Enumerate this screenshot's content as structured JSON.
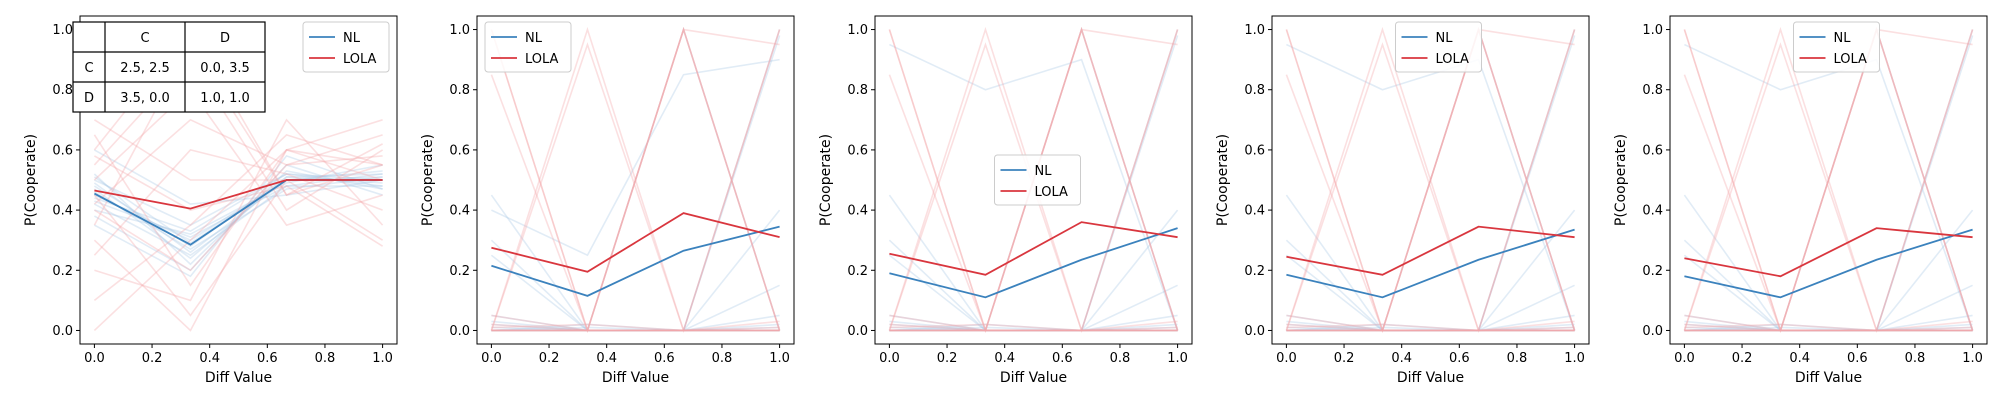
{
  "colors": {
    "nl": "#3b82bd",
    "lola": "#d9363e",
    "nl_faint": "#a9c8e6",
    "lola_faint": "#f3a5a9"
  },
  "legend": {
    "nl": "NL",
    "lola": "LOLA"
  },
  "payoff_table": {
    "col_headers": [
      "C",
      "D"
    ],
    "rows": [
      {
        "label": "C",
        "cells": [
          "2.5, 2.5",
          "0.0, 3.5"
        ]
      },
      {
        "label": "D",
        "cells": [
          "3.5, 0.0",
          "1.0, 1.0"
        ]
      }
    ]
  },
  "chart_data": [
    {
      "type": "line",
      "xlabel": "Diff Value",
      "ylabel": "P(Cooperate)",
      "xlim": [
        -0.05,
        1.05
      ],
      "ylim": [
        -0.045,
        1.045
      ],
      "x_ticks": [
        "0.0",
        "0.2",
        "0.4",
        "0.6",
        "0.8",
        "1.0"
      ],
      "y_ticks": [
        "0.0",
        "0.2",
        "0.4",
        "0.6",
        "0.8",
        "1.0"
      ],
      "legend_position": "upper right",
      "x": [
        0,
        0.3333,
        0.6667,
        1.0
      ],
      "series": [
        {
          "name": "NL",
          "values": [
            0.455,
            0.285,
            0.5,
            0.5
          ]
        },
        {
          "name": "LOLA",
          "values": [
            0.465,
            0.405,
            0.5,
            0.5
          ]
        }
      ]
    },
    {
      "type": "line",
      "xlabel": "Diff Value",
      "ylabel": "P(Cooperate)",
      "xlim": [
        -0.05,
        1.05
      ],
      "ylim": [
        -0.045,
        1.045
      ],
      "x_ticks": [
        "0.0",
        "0.2",
        "0.4",
        "0.6",
        "0.8",
        "1.0"
      ],
      "y_ticks": [
        "0.0",
        "0.2",
        "0.4",
        "0.6",
        "0.8",
        "1.0"
      ],
      "legend_position": "upper left",
      "x": [
        0,
        0.3333,
        0.6667,
        1.0
      ],
      "series": [
        {
          "name": "NL",
          "values": [
            0.215,
            0.115,
            0.265,
            0.345
          ]
        },
        {
          "name": "LOLA",
          "values": [
            0.275,
            0.195,
            0.39,
            0.31
          ]
        }
      ]
    },
    {
      "type": "line",
      "xlabel": "Diff Value",
      "ylabel": "P(Cooperate)",
      "xlim": [
        -0.05,
        1.05
      ],
      "ylim": [
        -0.045,
        1.045
      ],
      "x_ticks": [
        "0.0",
        "0.2",
        "0.4",
        "0.6",
        "0.8",
        "1.0"
      ],
      "y_ticks": [
        "0.0",
        "0.2",
        "0.4",
        "0.6",
        "0.8",
        "1.0"
      ],
      "legend_position": "center",
      "x": [
        0,
        0.3333,
        0.6667,
        1.0
      ],
      "series": [
        {
          "name": "NL",
          "values": [
            0.19,
            0.11,
            0.235,
            0.34
          ]
        },
        {
          "name": "LOLA",
          "values": [
            0.255,
            0.185,
            0.36,
            0.31
          ]
        }
      ]
    },
    {
      "type": "line",
      "xlabel": "Diff Value",
      "ylabel": "P(Cooperate)",
      "xlim": [
        -0.05,
        1.05
      ],
      "ylim": [
        -0.045,
        1.045
      ],
      "x_ticks": [
        "0.0",
        "0.2",
        "0.4",
        "0.6",
        "0.8",
        "1.0"
      ],
      "y_ticks": [
        "0.0",
        "0.2",
        "0.4",
        "0.6",
        "0.8",
        "1.0"
      ],
      "legend_position": "upper center",
      "x": [
        0,
        0.3333,
        0.6667,
        1.0
      ],
      "series": [
        {
          "name": "NL",
          "values": [
            0.185,
            0.11,
            0.235,
            0.335
          ]
        },
        {
          "name": "LOLA",
          "values": [
            0.245,
            0.185,
            0.345,
            0.31
          ]
        }
      ]
    },
    {
      "type": "line",
      "xlabel": "Diff Value",
      "ylabel": "P(Cooperate)",
      "xlim": [
        -0.05,
        1.05
      ],
      "ylim": [
        -0.045,
        1.045
      ],
      "x_ticks": [
        "0.0",
        "0.2",
        "0.4",
        "0.6",
        "0.8",
        "1.0"
      ],
      "y_ticks": [
        "0.0",
        "0.2",
        "0.4",
        "0.6",
        "0.8",
        "1.0"
      ],
      "legend_position": "upper center",
      "x": [
        0,
        0.3333,
        0.6667,
        1.0
      ],
      "series": [
        {
          "name": "NL",
          "values": [
            0.18,
            0.11,
            0.235,
            0.335
          ]
        },
        {
          "name": "LOLA",
          "values": [
            0.24,
            0.18,
            0.34,
            0.31
          ]
        }
      ]
    }
  ],
  "background_runs": [
    {
      "nl": [
        [
          0.45,
          0.3,
          0.5,
          0.5
        ],
        [
          0.5,
          0.35,
          0.52,
          0.48
        ],
        [
          0.42,
          0.25,
          0.48,
          0.52
        ],
        [
          0.48,
          0.28,
          0.51,
          0.49
        ],
        [
          0.4,
          0.32,
          0.49,
          0.55
        ],
        [
          0.52,
          0.22,
          0.53,
          0.47
        ],
        [
          0.46,
          0.27,
          0.47,
          0.51
        ],
        [
          0.44,
          0.33,
          0.52,
          0.5
        ],
        [
          0.38,
          0.2,
          0.55,
          0.45
        ],
        [
          0.49,
          0.26,
          0.5,
          0.53
        ],
        [
          0.43,
          0.31,
          0.48,
          0.48
        ],
        [
          0.47,
          0.24,
          0.51,
          0.52
        ],
        [
          0.6,
          0.42,
          0.45,
          0.5
        ],
        [
          0.35,
          0.18,
          0.58,
          0.47
        ],
        [
          0.51,
          0.29,
          0.5,
          0.51
        ]
      ],
      "lola": [
        [
          0.3,
          0.0,
          0.6,
          0.5
        ],
        [
          0.6,
          1.0,
          0.45,
          0.55
        ],
        [
          0.2,
          0.1,
          0.7,
          0.35
        ],
        [
          0.55,
          0.9,
          0.4,
          0.6
        ],
        [
          0.4,
          0.2,
          0.55,
          0.65
        ],
        [
          0.7,
          0.5,
          0.5,
          0.3
        ],
        [
          0.1,
          0.35,
          0.65,
          0.55
        ],
        [
          0.5,
          0.8,
          0.35,
          0.45
        ],
        [
          0.65,
          0.15,
          0.6,
          0.7
        ],
        [
          0.25,
          0.6,
          0.52,
          0.4
        ],
        [
          0.45,
          0.05,
          0.5,
          0.5
        ],
        [
          0.35,
          0.95,
          0.45,
          0.62
        ],
        [
          0.0,
          0.3,
          0.6,
          0.55
        ],
        [
          0.58,
          0.4,
          0.48,
          0.28
        ],
        [
          0.42,
          0.7,
          0.55,
          0.58
        ]
      ]
    },
    {
      "nl": [
        [
          0.0,
          0.0,
          0.0,
          1.0
        ],
        [
          0.45,
          0.0,
          0.0,
          0.0
        ],
        [
          0.0,
          0.0,
          0.0,
          0.02
        ],
        [
          0.02,
          0.0,
          1.0,
          0.0
        ],
        [
          0.3,
          0.0,
          0.0,
          0.01
        ],
        [
          0.0,
          0.01,
          0.0,
          0.98
        ],
        [
          0.01,
          0.0,
          0.0,
          0.0
        ],
        [
          0.4,
          0.25,
          0.85,
          0.9
        ],
        [
          0.0,
          0.0,
          0.0,
          0.05
        ],
        [
          0.03,
          0.0,
          0.0,
          0.0
        ],
        [
          0.0,
          0.02,
          0.0,
          0.0
        ],
        [
          0.25,
          0.0,
          0.0,
          0.4
        ],
        [
          0.0,
          0.0,
          0.0,
          0.0
        ],
        [
          0.05,
          0.0,
          0.0,
          0.15
        ]
      ],
      "lola": [
        [
          1.0,
          0.0,
          1.0,
          0.0
        ],
        [
          0.0,
          1.0,
          0.0,
          1.0
        ],
        [
          0.0,
          0.0,
          1.0,
          0.0
        ],
        [
          0.0,
          0.0,
          0.0,
          0.0
        ],
        [
          0.02,
          0.0,
          0.0,
          0.01
        ],
        [
          1.0,
          0.0,
          0.0,
          0.0
        ],
        [
          0.0,
          0.0,
          1.0,
          0.95
        ],
        [
          0.0,
          0.0,
          0.0,
          0.03
        ],
        [
          0.01,
          0.02,
          0.0,
          0.0
        ],
        [
          0.0,
          0.95,
          0.0,
          0.0
        ],
        [
          0.85,
          0.0,
          1.0,
          0.0
        ],
        [
          0.0,
          0.0,
          0.0,
          1.0
        ],
        [
          0.0,
          0.0,
          0.0,
          0.0
        ],
        [
          0.05,
          0.0,
          0.0,
          0.0
        ]
      ]
    },
    {
      "nl": [
        [
          0.0,
          0.0,
          0.0,
          1.0
        ],
        [
          0.45,
          0.0,
          0.0,
          0.0
        ],
        [
          0.0,
          0.0,
          0.0,
          0.02
        ],
        [
          0.02,
          0.0,
          1.0,
          0.0
        ],
        [
          0.3,
          0.0,
          0.0,
          0.01
        ],
        [
          0.0,
          0.01,
          0.0,
          0.98
        ],
        [
          0.01,
          0.0,
          0.0,
          0.0
        ],
        [
          0.95,
          0.8,
          0.9,
          0.0
        ],
        [
          0.0,
          0.0,
          0.0,
          0.05
        ],
        [
          0.03,
          0.0,
          0.0,
          0.0
        ],
        [
          0.0,
          0.02,
          0.0,
          0.0
        ],
        [
          0.25,
          0.0,
          0.0,
          0.4
        ],
        [
          0.0,
          0.0,
          0.0,
          0.0
        ],
        [
          0.05,
          0.0,
          0.0,
          0.15
        ]
      ],
      "lola": [
        [
          1.0,
          0.0,
          1.0,
          0.0
        ],
        [
          0.0,
          1.0,
          0.0,
          1.0
        ],
        [
          0.0,
          0.0,
          1.0,
          0.0
        ],
        [
          0.0,
          0.0,
          0.0,
          0.0
        ],
        [
          0.02,
          0.0,
          0.0,
          0.01
        ],
        [
          1.0,
          0.0,
          0.0,
          0.0
        ],
        [
          0.0,
          0.0,
          1.0,
          0.95
        ],
        [
          0.0,
          0.0,
          0.0,
          0.03
        ],
        [
          0.01,
          0.02,
          0.0,
          0.0
        ],
        [
          0.0,
          0.95,
          0.0,
          0.0
        ],
        [
          0.85,
          0.0,
          1.0,
          0.0
        ],
        [
          0.0,
          0.0,
          0.0,
          1.0
        ],
        [
          0.0,
          0.0,
          0.0,
          0.0
        ],
        [
          0.05,
          0.0,
          0.0,
          0.0
        ]
      ]
    },
    {
      "nl": [
        [
          0.0,
          0.0,
          0.0,
          1.0
        ],
        [
          0.45,
          0.0,
          0.0,
          0.0
        ],
        [
          0.0,
          0.0,
          0.0,
          0.02
        ],
        [
          0.02,
          0.0,
          1.0,
          0.0
        ],
        [
          0.3,
          0.0,
          0.0,
          0.01
        ],
        [
          0.0,
          0.01,
          0.0,
          0.98
        ],
        [
          0.01,
          0.0,
          0.0,
          0.0
        ],
        [
          0.95,
          0.8,
          0.9,
          0.0
        ],
        [
          0.0,
          0.0,
          0.0,
          0.05
        ],
        [
          0.03,
          0.0,
          0.0,
          0.0
        ],
        [
          0.0,
          0.02,
          0.0,
          0.0
        ],
        [
          0.25,
          0.0,
          0.0,
          0.4
        ],
        [
          0.0,
          0.0,
          0.0,
          0.0
        ],
        [
          0.05,
          0.0,
          0.0,
          0.15
        ]
      ],
      "lola": [
        [
          1.0,
          0.0,
          1.0,
          0.0
        ],
        [
          0.0,
          1.0,
          0.0,
          1.0
        ],
        [
          0.0,
          0.0,
          1.0,
          0.0
        ],
        [
          0.0,
          0.0,
          0.0,
          0.0
        ],
        [
          0.02,
          0.0,
          0.0,
          0.01
        ],
        [
          1.0,
          0.0,
          0.0,
          0.0
        ],
        [
          0.0,
          0.0,
          1.0,
          0.95
        ],
        [
          0.0,
          0.0,
          0.0,
          0.03
        ],
        [
          0.01,
          0.02,
          0.0,
          0.0
        ],
        [
          0.0,
          0.95,
          0.0,
          0.0
        ],
        [
          0.85,
          0.0,
          1.0,
          0.0
        ],
        [
          0.0,
          0.0,
          0.0,
          1.0
        ],
        [
          0.0,
          0.0,
          0.0,
          0.0
        ],
        [
          0.05,
          0.0,
          0.0,
          0.0
        ]
      ]
    },
    {
      "nl": [
        [
          0.0,
          0.0,
          0.0,
          1.0
        ],
        [
          0.45,
          0.0,
          0.0,
          0.0
        ],
        [
          0.0,
          0.0,
          0.0,
          0.02
        ],
        [
          0.02,
          0.0,
          1.0,
          0.0
        ],
        [
          0.3,
          0.0,
          0.0,
          0.01
        ],
        [
          0.0,
          0.01,
          0.0,
          0.98
        ],
        [
          0.01,
          0.0,
          0.0,
          0.0
        ],
        [
          0.95,
          0.8,
          0.9,
          0.0
        ],
        [
          0.0,
          0.0,
          0.0,
          0.05
        ],
        [
          0.03,
          0.0,
          0.0,
          0.0
        ],
        [
          0.0,
          0.02,
          0.0,
          0.0
        ],
        [
          0.25,
          0.0,
          0.0,
          0.4
        ],
        [
          0.0,
          0.0,
          0.0,
          0.0
        ],
        [
          0.05,
          0.0,
          0.0,
          0.15
        ]
      ],
      "lola": [
        [
          1.0,
          0.0,
          1.0,
          0.0
        ],
        [
          0.0,
          1.0,
          0.0,
          1.0
        ],
        [
          0.0,
          0.0,
          1.0,
          0.0
        ],
        [
          0.0,
          0.0,
          0.0,
          0.0
        ],
        [
          0.02,
          0.0,
          0.0,
          0.01
        ],
        [
          1.0,
          0.0,
          0.0,
          0.0
        ],
        [
          0.0,
          0.0,
          1.0,
          0.95
        ],
        [
          0.0,
          0.0,
          0.0,
          0.03
        ],
        [
          0.01,
          0.02,
          0.0,
          0.0
        ],
        [
          0.0,
          0.95,
          0.0,
          0.0
        ],
        [
          0.85,
          0.0,
          1.0,
          0.0
        ],
        [
          0.0,
          0.0,
          0.0,
          1.0
        ],
        [
          0.0,
          0.0,
          0.0,
          0.0
        ],
        [
          0.05,
          0.0,
          0.0,
          0.0
        ]
      ]
    }
  ]
}
